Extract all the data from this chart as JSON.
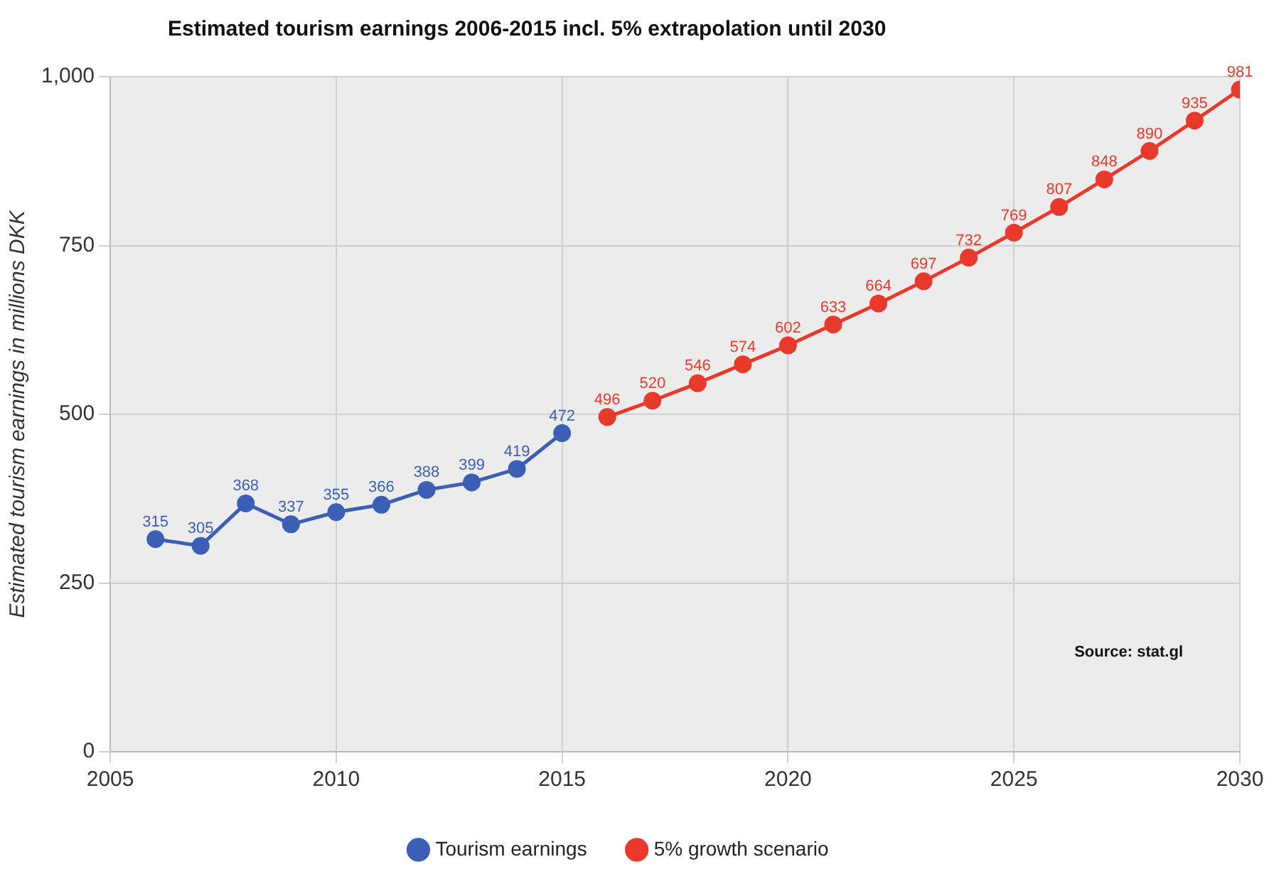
{
  "chart_data": {
    "type": "line",
    "title": "Estimated tourism earnings 2006-2015 incl. 5% extrapolation until 2030",
    "ylabel": "Estimated tourism earnings in millions DKK",
    "series": [
      {
        "name": "Tourism earnings",
        "color": "#3a5fb5",
        "x": [
          2006,
          2007,
          2008,
          2009,
          2010,
          2011,
          2012,
          2013,
          2014,
          2015
        ],
        "values": [
          315,
          305,
          368,
          337,
          355,
          366,
          388,
          399,
          419,
          472
        ]
      },
      {
        "name": "5% growth scenario",
        "color": "#e8392a",
        "x": [
          2016,
          2017,
          2018,
          2019,
          2020,
          2021,
          2022,
          2023,
          2024,
          2025,
          2026,
          2027,
          2028,
          2029,
          2030
        ],
        "values": [
          496,
          520,
          546,
          574,
          602,
          633,
          664,
          697,
          732,
          769,
          807,
          848,
          890,
          935,
          981
        ]
      }
    ],
    "xlim": [
      2005,
      2030
    ],
    "xticks": [
      2005,
      2010,
      2015,
      2020,
      2025,
      2030
    ],
    "ylim": [
      0,
      1000
    ],
    "yticks": [
      0,
      250,
      500,
      750,
      {
        "value": 1000,
        "label": "1,000"
      }
    ],
    "grid": true,
    "legend": "bottom",
    "marker": "circle",
    "line_style": "solid",
    "data_labels": true,
    "annotations": [
      "Source: stat.gl"
    ]
  }
}
